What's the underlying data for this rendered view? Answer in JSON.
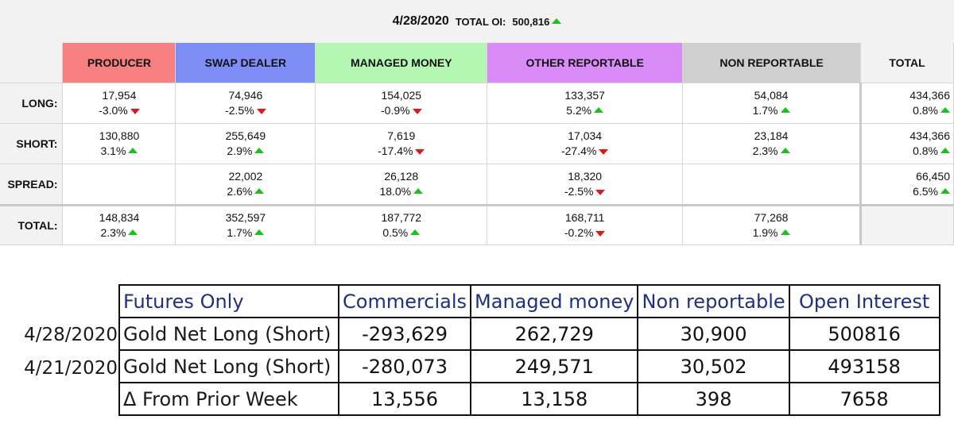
{
  "header": {
    "date": "4/28/2020",
    "oi_label": "TOTAL OI:",
    "oi_value": "500,816",
    "oi_direction": "up"
  },
  "columns": [
    {
      "label": "PRODUCER",
      "color": "#f77f7f"
    },
    {
      "label": "SWAP DEALER",
      "color": "#7f8ef7"
    },
    {
      "label": "MANAGED MONEY",
      "color": "#b3f7b3"
    },
    {
      "label": "OTHER REPORTABLE",
      "color": "#d98cf7"
    },
    {
      "label": "NON REPORTABLE",
      "color": "#cfcfcf"
    },
    {
      "label": "TOTAL",
      "color": "#f2f2f2"
    }
  ],
  "rows": [
    {
      "label": "LONG:",
      "cells": [
        {
          "value": "17,954",
          "pct": "-3.0%",
          "dir": "down"
        },
        {
          "value": "74,946",
          "pct": "-2.5%",
          "dir": "down"
        },
        {
          "value": "154,025",
          "pct": "-0.9%",
          "dir": "down"
        },
        {
          "value": "133,357",
          "pct": "5.2%",
          "dir": "up"
        },
        {
          "value": "54,084",
          "pct": "1.7%",
          "dir": "up"
        },
        {
          "value": "434,366",
          "pct": "0.8%",
          "dir": "up"
        }
      ]
    },
    {
      "label": "SHORT:",
      "cells": [
        {
          "value": "130,880",
          "pct": "3.1%",
          "dir": "up"
        },
        {
          "value": "255,649",
          "pct": "2.9%",
          "dir": "up"
        },
        {
          "value": "7,619",
          "pct": "-17.4%",
          "dir": "down"
        },
        {
          "value": "17,034",
          "pct": "-27.4%",
          "dir": "down"
        },
        {
          "value": "23,184",
          "pct": "2.3%",
          "dir": "up"
        },
        {
          "value": "434,366",
          "pct": "0.8%",
          "dir": "up"
        }
      ]
    },
    {
      "label": "SPREAD:",
      "cells": [
        {
          "value": "",
          "pct": "",
          "dir": ""
        },
        {
          "value": "22,002",
          "pct": "2.6%",
          "dir": "up"
        },
        {
          "value": "26,128",
          "pct": "18.0%",
          "dir": "up"
        },
        {
          "value": "18,320",
          "pct": "-2.5%",
          "dir": "down"
        },
        {
          "value": "",
          "pct": "",
          "dir": ""
        },
        {
          "value": "66,450",
          "pct": "6.5%",
          "dir": "up"
        }
      ]
    },
    {
      "label": "TOTAL:",
      "cells": [
        {
          "value": "148,834",
          "pct": "2.3%",
          "dir": "up"
        },
        {
          "value": "352,597",
          "pct": "1.7%",
          "dir": "up"
        },
        {
          "value": "187,772",
          "pct": "0.5%",
          "dir": "up"
        },
        {
          "value": "168,711",
          "pct": "-0.2%",
          "dir": "down"
        },
        {
          "value": "77,268",
          "pct": "1.9%",
          "dir": "up"
        },
        {
          "value": "",
          "pct": "",
          "dir": ""
        }
      ]
    }
  ],
  "futures": {
    "headers": [
      "Futures Only",
      "Commercials",
      "Managed money",
      "Non reportable",
      "Open Interest"
    ],
    "rows": [
      {
        "date": "4/28/2020",
        "cells": [
          "Gold Net Long (Short)",
          "-293,629",
          "262,729",
          "30,900",
          "500816"
        ]
      },
      {
        "date": "4/21/2020",
        "cells": [
          "Gold Net Long (Short)",
          "-280,073",
          "249,571",
          "30,502",
          "493158"
        ]
      },
      {
        "date": "",
        "cells": [
          "Δ From Prior Week",
          "13,556",
          "13,158",
          "398",
          "7658"
        ]
      }
    ]
  },
  "colors": {
    "up": "#19c219",
    "down": "#e01818",
    "header_text": "#1d2f86"
  }
}
